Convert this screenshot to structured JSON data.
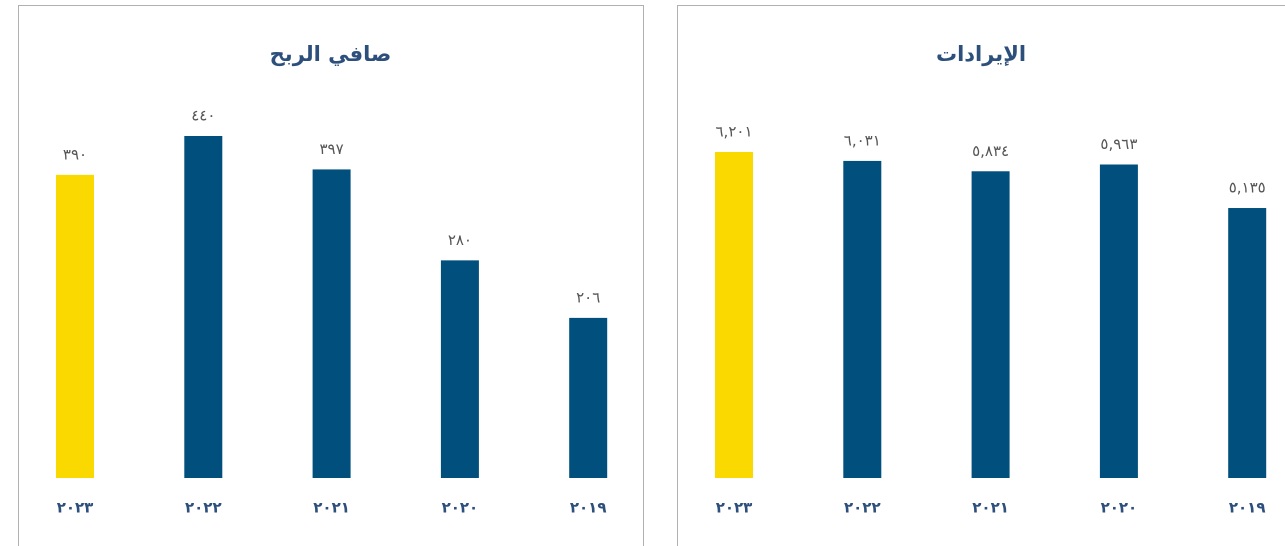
{
  "chart_data": [
    {
      "type": "bar",
      "title": "صافي الربح",
      "categories": [
        "٢٠٢٣",
        "٢٠٢٢",
        "٢٠٢١",
        "٢٠٢٠",
        "٢٠١٩"
      ],
      "values": [
        390,
        440,
        397,
        280,
        206
      ],
      "value_labels": [
        "٣٩٠",
        "٤٤٠",
        "٣٩٧",
        "٢٨٠",
        "٢٠٦"
      ],
      "colors": [
        "#f9d900",
        "#004f7c",
        "#004f7c",
        "#004f7c",
        "#004f7c"
      ],
      "ylim": [
        0,
        440
      ]
    },
    {
      "type": "bar",
      "title": "الإيرادات",
      "categories": [
        "٢٠٢٣",
        "٢٠٢٢",
        "٢٠٢١",
        "٢٠٢٠",
        "٢٠١٩"
      ],
      "values": [
        6201,
        6031,
        5834,
        5963,
        5135
      ],
      "value_labels": [
        "٦,٢٠١",
        "٦,٠٣١",
        "٥,٨٣٤",
        "٥,٩٦٣",
        "٥,١٣٥"
      ],
      "colors": [
        "#f9d900",
        "#004f7c",
        "#004f7c",
        "#004f7c",
        "#004f7c"
      ],
      "ylim": [
        0,
        6505
      ]
    }
  ]
}
